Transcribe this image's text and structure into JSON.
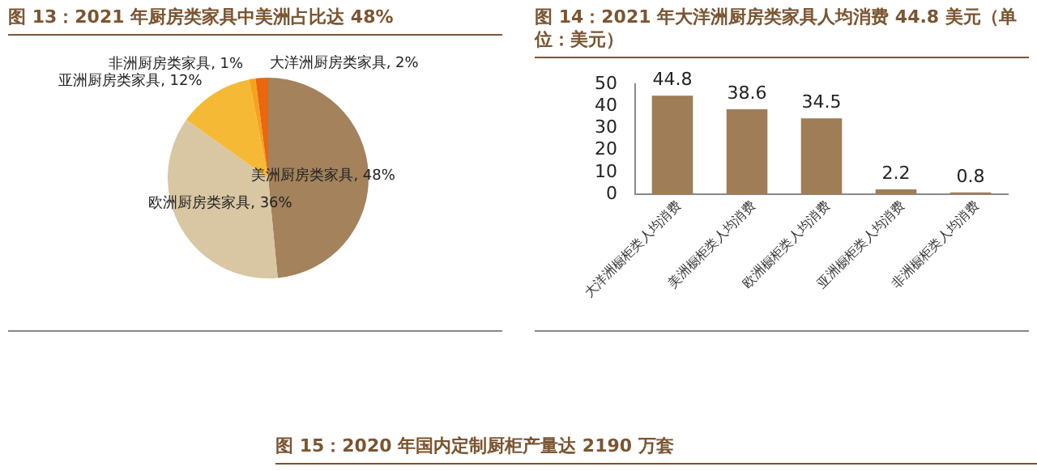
{
  "chart_data": [
    {
      "type": "pie",
      "title": "图 13：2021 年厨房类家具中美洲占比达 48%",
      "categories": [
        "美洲厨房类家具",
        "欧洲厨房类家具",
        "亚洲厨房类家具",
        "非洲厨房类家具",
        "大洋洲厨房类家具"
      ],
      "values": [
        48,
        36,
        12,
        1,
        2
      ],
      "colors": [
        "#a3825c",
        "#d9c6a3",
        "#f6b936",
        "#f7a21e",
        "#e8670f"
      ],
      "value_labels": [
        "48%",
        "36%",
        "12%",
        "1%",
        "2%"
      ]
    },
    {
      "type": "bar",
      "title": "图 14：2021 年大洋洲厨房类家具人均消费 44.8 美元（单位：美元）",
      "categories": [
        "大洋洲橱柜类人均消费",
        "美洲橱柜类人均消费",
        "欧洲橱柜类人均消费",
        "亚洲橱柜类人均消费",
        "非洲橱柜类人均消费"
      ],
      "values": [
        44.8,
        38.6,
        34.5,
        2.2,
        0.8
      ],
      "color": "#9e7d57",
      "ylim": [
        0,
        50
      ],
      "yticks": [
        0,
        10,
        20,
        30,
        40,
        50
      ],
      "data_labels": true
    },
    {
      "type": "other",
      "title": "图 15：2020 年国内定制厨柜产量达 2190 万套"
    }
  ]
}
